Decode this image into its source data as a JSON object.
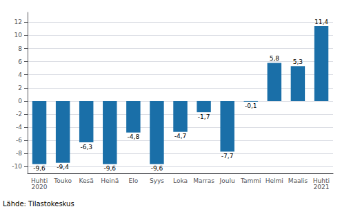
{
  "chart_data": {
    "type": "bar",
    "categories": [
      "Huhti\n2020",
      "Touko",
      "Kesä",
      "Heinä",
      "Elo",
      "Syys",
      "Loka",
      "Marras",
      "Joulu",
      "Tammi",
      "Helmi",
      "Maalis",
      "Huhti\n2021"
    ],
    "values": [
      -9.6,
      -9.4,
      -6.3,
      -9.6,
      -4.8,
      -9.6,
      -4.7,
      -1.7,
      -7.7,
      -0.1,
      5.8,
      5.3,
      11.4
    ],
    "value_labels": [
      "-9,6",
      "-9,4",
      "-6,3",
      "-9,6",
      "-4,8",
      "-9,6",
      "-4,7",
      "-1,7",
      "-7,7",
      "-0,1",
      "5,8",
      "5,3",
      "11,4"
    ],
    "data_labels": true,
    "color": "#1a6fa8",
    "ylim": [
      -11,
      13.5
    ],
    "yticks": [
      -10,
      -8,
      -6,
      -4,
      -2,
      0,
      2,
      4,
      6,
      8,
      10,
      12
    ],
    "grid": true,
    "annotation": "Lähde: Tilastokeskus"
  }
}
